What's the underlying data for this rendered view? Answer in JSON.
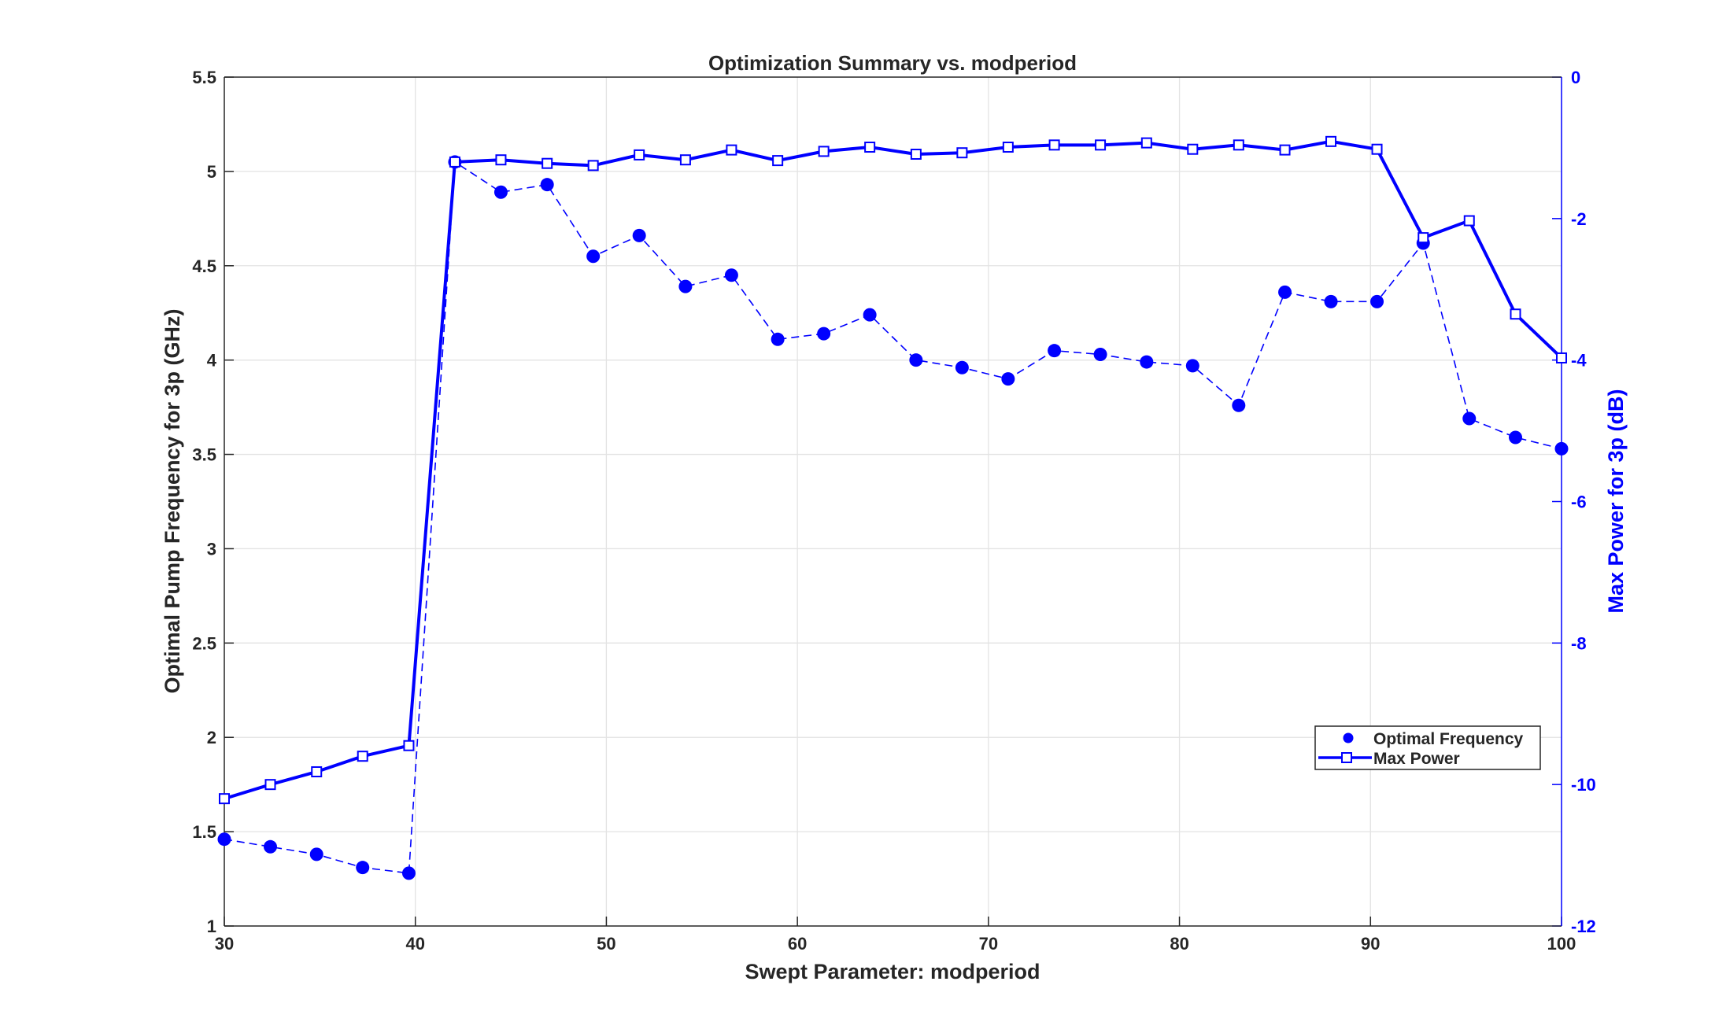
{
  "chart_data": {
    "type": "line",
    "title": "Optimization Summary vs. modperiod",
    "xlabel": "Swept Parameter: modperiod",
    "ylabel_left": "Optimal Pump Frequency for 3p (GHz)",
    "ylabel_right": "Max Power for 3p (dB)",
    "xlim": [
      30,
      100
    ],
    "ylim_left": [
      1,
      5.5
    ],
    "ylim_right": [
      -12,
      0
    ],
    "x_ticks": [
      "30",
      "40",
      "50",
      "60",
      "70",
      "80",
      "90",
      "100"
    ],
    "y_left_ticks": [
      "1",
      "1.5",
      "2",
      "2.5",
      "3",
      "3.5",
      "4",
      "4.5",
      "5",
      "5.5"
    ],
    "y_right_ticks": [
      "-12",
      "-10",
      "-8",
      "-6",
      "-4",
      "-2",
      "0"
    ],
    "grid": true,
    "legend_position": "bottom-right",
    "x": [
      30,
      32.41,
      34.83,
      37.24,
      39.66,
      42.07,
      44.48,
      46.9,
      49.31,
      51.72,
      54.14,
      56.55,
      58.97,
      61.38,
      63.79,
      66.21,
      68.62,
      71.03,
      73.45,
      75.86,
      78.28,
      80.69,
      83.1,
      85.52,
      87.93,
      90.34,
      92.76,
      95.17,
      97.59,
      100
    ],
    "series": [
      {
        "name": "Optimal Frequency",
        "axis": "left",
        "color": "#0000ff",
        "style": "dashed-markers-circle",
        "values": [
          1.46,
          1.42,
          1.38,
          1.31,
          1.28,
          5.05,
          4.89,
          4.93,
          4.55,
          4.66,
          4.39,
          4.45,
          4.11,
          4.14,
          4.24,
          4.0,
          3.96,
          3.9,
          4.05,
          4.03,
          3.99,
          3.97,
          3.76,
          4.36,
          4.31,
          4.31,
          4.62,
          3.69,
          3.59,
          3.53
        ]
      },
      {
        "name": "Max Power",
        "axis": "right",
        "color": "#0000ff",
        "style": "solid-markers-square",
        "values": [
          -10.2,
          -10.0,
          -9.82,
          -9.6,
          -9.45,
          -1.2,
          -1.17,
          -1.22,
          -1.25,
          -1.1,
          -1.17,
          -1.03,
          -1.18,
          -1.05,
          -0.99,
          -1.09,
          -1.07,
          -0.99,
          -0.96,
          -0.96,
          -0.93,
          -1.02,
          -0.96,
          -1.03,
          -0.91,
          -1.02,
          -2.27,
          -2.03,
          -3.35,
          -3.97
        ]
      }
    ]
  }
}
